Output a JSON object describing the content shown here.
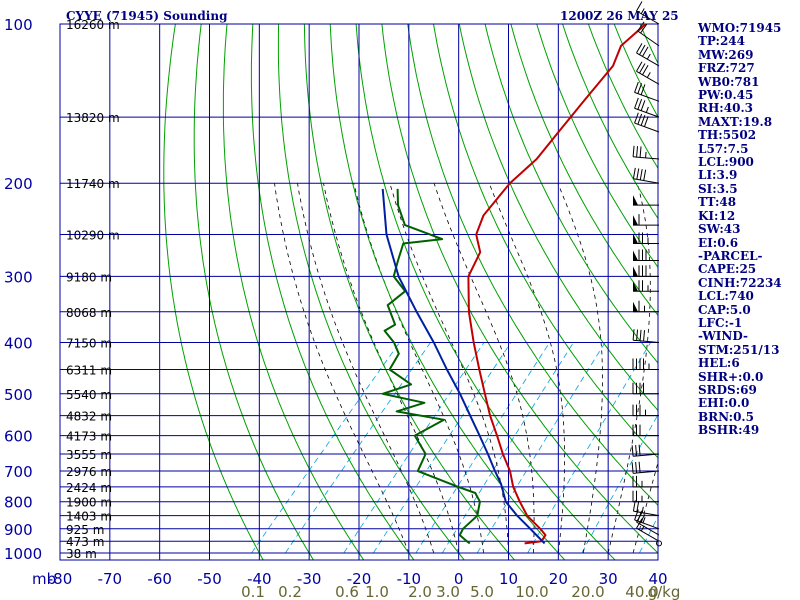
{
  "header": {
    "title": "CYYE (71945) Sounding",
    "timestamp": "1200Z 26 MAY 25"
  },
  "indices": [
    "WMO:71945",
    "TP:244",
    "MW:269",
    "FRZ:727",
    "WB0:781",
    "PW:0.45",
    "RH:40.3",
    "MAXT:19.8",
    "TH:5502",
    "L57:7.5",
    "LCL:900",
    "LI:3.9",
    "SI:3.5",
    "TT:48",
    "KI:12",
    "SW:43",
    "EI:0.6",
    "-PARCEL-",
    "CAPE:25",
    "CINH:72234",
    "LCL:740",
    "CAP:5.0",
    "LFC:-1",
    "-WIND-",
    "STM:251/13",
    "HEL:6",
    "SHR+:0.0",
    "SRDS:69",
    "EHI:0.0",
    "BRN:0.5",
    "BSHR:49"
  ],
  "colors": {
    "grid": "#0000a0",
    "axis_text": "#0000a0",
    "dry_adiabat": "#00a000",
    "moist_adiabat": "#000000",
    "mixing_ratio": "#00a0e0",
    "temperature": "#c00000",
    "dewpoint": "#006000",
    "parcel": "#0020a0",
    "mixing_label": "#666633",
    "wind_barb": "#000000"
  },
  "chart_data": {
    "type": "line",
    "diagram": "skew-t log-p",
    "x_axis": {
      "label": "",
      "ticks": [
        -80,
        -70,
        -60,
        -50,
        -40,
        -30,
        -20,
        -10,
        0,
        10,
        20,
        30,
        40
      ],
      "tick_labels": [
        "-80",
        "-70",
        "-60",
        "-50",
        "-40",
        "-30",
        "-20",
        "-10",
        "0",
        "10",
        "20",
        "30",
        "40"
      ],
      "range": [
        -80,
        40
      ]
    },
    "y_axis": {
      "label": "mb",
      "scale": "log",
      "ticks": [
        100,
        200,
        300,
        400,
        500,
        600,
        700,
        800,
        900,
        1000
      ],
      "tick_labels": [
        "100",
        "200",
        "300",
        "400",
        "500",
        "600",
        "700",
        "800",
        "900",
        "1000"
      ],
      "range": [
        1000,
        100
      ]
    },
    "height_labels": [
      {
        "p": 100,
        "label": "16260 m"
      },
      {
        "p": 150,
        "label": "13820 m"
      },
      {
        "p": 200,
        "label": "11740 m"
      },
      {
        "p": 250,
        "label": "10290 m"
      },
      {
        "p": 300,
        "label": "9180 m"
      },
      {
        "p": 350,
        "label": "8068 m"
      },
      {
        "p": 400,
        "label": "7150 m"
      },
      {
        "p": 450,
        "label": "6311 m"
      },
      {
        "p": 500,
        "label": "5540 m"
      },
      {
        "p": 550,
        "label": "4832 m"
      },
      {
        "p": 600,
        "label": "4173 m"
      },
      {
        "p": 650,
        "label": "3555 m"
      },
      {
        "p": 700,
        "label": "2976 m"
      },
      {
        "p": 750,
        "label": "2424 m"
      },
      {
        "p": 800,
        "label": "1900 m"
      },
      {
        "p": 850,
        "label": "1403 m"
      },
      {
        "p": 900,
        "label": "925 m"
      },
      {
        "p": 950,
        "label": "473 m"
      },
      {
        "p": 1000,
        "label": "38 m"
      }
    ],
    "mixing_ratio_labels": [
      {
        "w": 0.1,
        "label": "0.1"
      },
      {
        "w": 0.2,
        "label": "0.2"
      },
      {
        "w": 0.6,
        "label": "0.6"
      },
      {
        "w": 1.0,
        "label": "1.0"
      },
      {
        "w": 2.0,
        "label": "2.0"
      },
      {
        "w": 3.0,
        "label": "3.0"
      },
      {
        "w": 5.0,
        "label": "5.0"
      },
      {
        "w": 10.0,
        "label": "10.0"
      },
      {
        "w": 20.0,
        "label": "20.0"
      },
      {
        "w": 40.0,
        "label": "40.0"
      }
    ],
    "mixing_ratio_unit": "g/kg",
    "series": [
      {
        "key": "temperature",
        "points": [
          [
            959,
            11.5
          ],
          [
            950,
            14.5
          ],
          [
            925,
            14.2
          ],
          [
            900,
            12.0
          ],
          [
            850,
            7.0
          ],
          [
            800,
            3.0
          ],
          [
            750,
            -1.0
          ],
          [
            700,
            -4.5
          ],
          [
            650,
            -9.0
          ],
          [
            600,
            -13.5
          ],
          [
            550,
            -18.5
          ],
          [
            500,
            -23.5
          ],
          [
            450,
            -29.0
          ],
          [
            400,
            -35.0
          ],
          [
            350,
            -41.5
          ],
          [
            300,
            -48.0
          ],
          [
            270,
            -50.0
          ],
          [
            250,
            -54.0
          ],
          [
            230,
            -56.0
          ],
          [
            200,
            -56.5
          ],
          [
            180,
            -55.5
          ],
          [
            160,
            -56.0
          ],
          [
            140,
            -56.5
          ],
          [
            120,
            -57.0
          ],
          [
            110,
            -59.0
          ],
          [
            100,
            -58.0
          ]
        ]
      },
      {
        "key": "dewpoint",
        "points": [
          [
            959,
            0.5
          ],
          [
            950,
            -0.5
          ],
          [
            925,
            -3.0
          ],
          [
            900,
            -3.5
          ],
          [
            850,
            -3.0
          ],
          [
            800,
            -5.0
          ],
          [
            770,
            -7.5
          ],
          [
            750,
            -12.0
          ],
          [
            700,
            -23.0
          ],
          [
            650,
            -24.5
          ],
          [
            600,
            -30.0
          ],
          [
            560,
            -27.0
          ],
          [
            540,
            -38.0
          ],
          [
            520,
            -34.0
          ],
          [
            500,
            -44.0
          ],
          [
            480,
            -40.0
          ],
          [
            450,
            -47.0
          ],
          [
            420,
            -48.0
          ],
          [
            400,
            -51.0
          ],
          [
            380,
            -55.0
          ],
          [
            370,
            -54.0
          ],
          [
            340,
            -59.0
          ],
          [
            320,
            -58.0
          ],
          [
            300,
            -63.0
          ],
          [
            280,
            -65.0
          ],
          [
            260,
            -67.0
          ],
          [
            255,
            -60.0
          ],
          [
            240,
            -70.0
          ],
          [
            220,
            -75.0
          ],
          [
            205,
            -78.0
          ]
        ]
      },
      {
        "key": "parcel",
        "points": [
          [
            959,
            15.5
          ],
          [
            900,
            10.0
          ],
          [
            850,
            5.0
          ],
          [
            800,
            0.2
          ],
          [
            740,
            -4.0
          ],
          [
            700,
            -7.5
          ],
          [
            650,
            -12.0
          ],
          [
            600,
            -17.0
          ],
          [
            550,
            -22.5
          ],
          [
            500,
            -28.5
          ],
          [
            450,
            -35.5
          ],
          [
            400,
            -43.0
          ],
          [
            350,
            -52.0
          ],
          [
            300,
            -62.0
          ],
          [
            250,
            -72.0
          ],
          [
            205,
            -81.0
          ]
        ]
      }
    ],
    "wind_barbs": [
      {
        "p": 950,
        "dir": 300,
        "spd": 15
      },
      {
        "p": 925,
        "dir": 300,
        "spd": 20
      },
      {
        "p": 900,
        "dir": 290,
        "spd": 25
      },
      {
        "p": 850,
        "dir": 280,
        "spd": 25
      },
      {
        "p": 800,
        "dir": 270,
        "spd": 25
      },
      {
        "p": 750,
        "dir": 270,
        "spd": 25
      },
      {
        "p": 700,
        "dir": 265,
        "spd": 30
      },
      {
        "p": 650,
        "dir": 265,
        "spd": 30
      },
      {
        "p": 600,
        "dir": 270,
        "spd": 30
      },
      {
        "p": 550,
        "dir": 270,
        "spd": 35
      },
      {
        "p": 500,
        "dir": 270,
        "spd": 40
      },
      {
        "p": 450,
        "dir": 270,
        "spd": 45
      },
      {
        "p": 400,
        "dir": 275,
        "spd": 40
      },
      {
        "p": 350,
        "dir": 270,
        "spd": 65
      },
      {
        "p": 320,
        "dir": 270,
        "spd": 75
      },
      {
        "p": 300,
        "dir": 270,
        "spd": 80
      },
      {
        "p": 280,
        "dir": 270,
        "spd": 80
      },
      {
        "p": 260,
        "dir": 270,
        "spd": 75
      },
      {
        "p": 240,
        "dir": 270,
        "spd": 60
      },
      {
        "p": 220,
        "dir": 270,
        "spd": 50
      },
      {
        "p": 200,
        "dir": 280,
        "spd": 40
      },
      {
        "p": 180,
        "dir": 275,
        "spd": 35
      },
      {
        "p": 160,
        "dir": 290,
        "spd": 40
      },
      {
        "p": 150,
        "dir": 290,
        "spd": 35
      },
      {
        "p": 140,
        "dir": 290,
        "spd": 30
      },
      {
        "p": 130,
        "dir": 300,
        "spd": 35
      },
      {
        "p": 120,
        "dir": 300,
        "spd": 35
      },
      {
        "p": 110,
        "dir": 305,
        "spd": 20
      },
      {
        "p": 100,
        "dir": 300,
        "spd": 15
      }
    ],
    "grid": true
  }
}
